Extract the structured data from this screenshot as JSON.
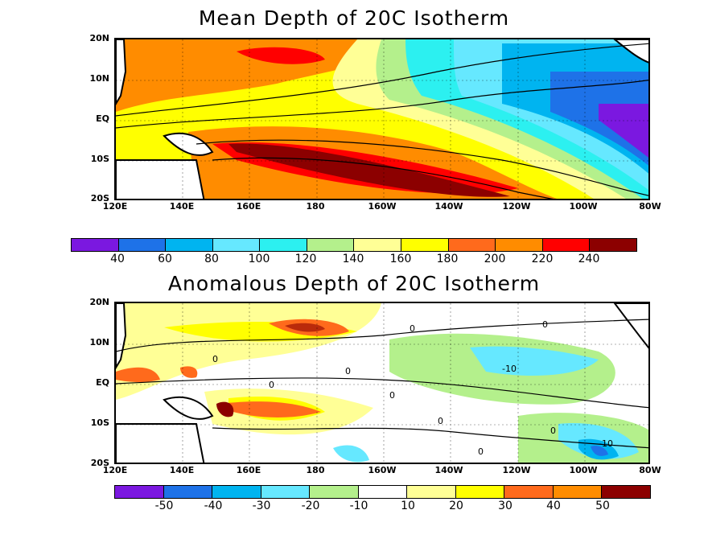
{
  "colors": {
    "mean_scale": [
      "#7b18e0",
      "#1e72e8",
      "#00b4f0",
      "#66e8ff",
      "#2cf0f0",
      "#b4f08c",
      "#ffff96",
      "#ffff00",
      "#ff6a1c",
      "#ff8c00",
      "#ff0000",
      "#8c0000"
    ],
    "anom_scale": [
      "#7b18e0",
      "#1e72e8",
      "#00b4f0",
      "#66e8ff",
      "#b4f08c",
      "#ffffff",
      "#ffff96",
      "#ffff00",
      "#ff6a1c",
      "#ff8c00",
      "#8c0000"
    ]
  },
  "map_region": {
    "lon_range": [
      "120E",
      "80W"
    ],
    "lat_range": [
      "20S",
      "20N"
    ]
  },
  "mean_panel": {
    "title": "Mean Depth of 20C Isotherm",
    "y_ticks": [
      "20N",
      "10N",
      "EQ",
      "10S",
      "20S"
    ],
    "x_ticks": [
      "120E",
      "140E",
      "160E",
      "180",
      "160W",
      "140W",
      "120W",
      "100W",
      "80W"
    ],
    "colorbar_labels": [
      "40",
      "60",
      "80",
      "100",
      "120",
      "140",
      "160",
      "180",
      "200",
      "220",
      "240"
    ],
    "contour_labels": [],
    "units": ""
  },
  "anom_panel": {
    "title": "Anomalous Depth of 20C Isotherm",
    "y_ticks": [
      "20N",
      "10N",
      "EQ",
      "10S",
      "20S"
    ],
    "x_ticks": [
      "120E",
      "140E",
      "160E",
      "180",
      "160W",
      "140W",
      "120W",
      "100W",
      "80W"
    ],
    "colorbar_labels": [
      "-50",
      "-40",
      "-30",
      "-20",
      "-10",
      "10",
      "20",
      "30",
      "40",
      "50"
    ],
    "contour_labels": [
      "0",
      "0",
      "0",
      "0",
      "0",
      "0",
      "0",
      "0",
      "0",
      "-10",
      "-10"
    ]
  }
}
